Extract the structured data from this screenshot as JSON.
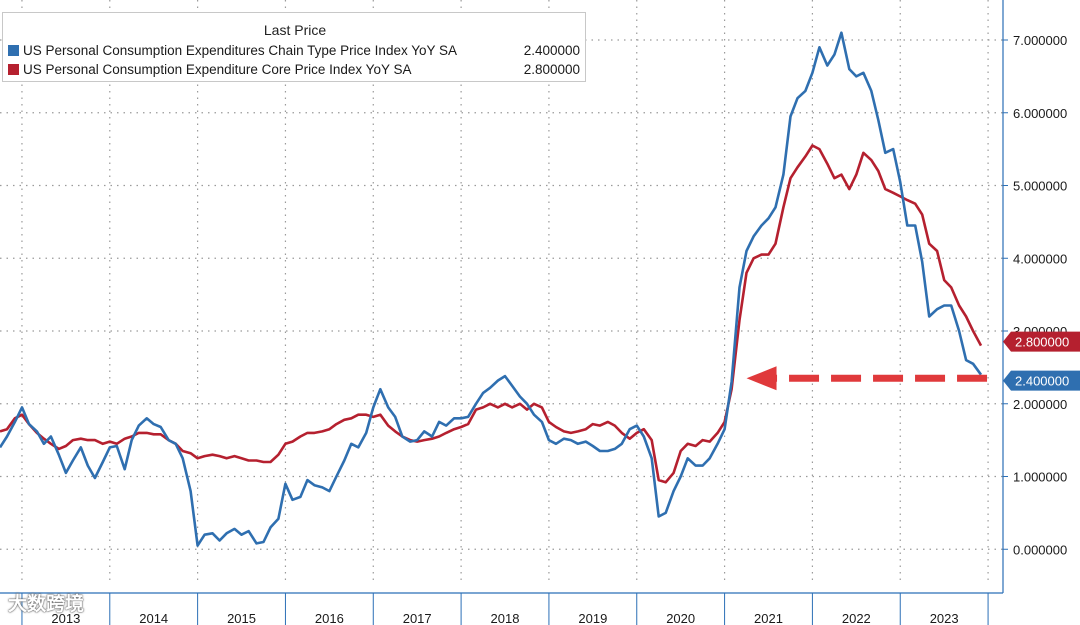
{
  "chart_data": {
    "type": "line",
    "legend": {
      "title": "Last Price",
      "placement": "top-left"
    },
    "series": [
      {
        "name": "US Personal Consumption Expenditures Chain Type Price Index YoY SA",
        "last_value_label": "2.400000",
        "color": "#2f6fb0",
        "points": [
          [
            2012.75,
            1.4
          ],
          [
            2012.83,
            1.55
          ],
          [
            2012.92,
            1.75
          ],
          [
            2013.0,
            1.95
          ],
          [
            2013.08,
            1.72
          ],
          [
            2013.17,
            1.62
          ],
          [
            2013.25,
            1.45
          ],
          [
            2013.33,
            1.55
          ],
          [
            2013.42,
            1.3
          ],
          [
            2013.5,
            1.05
          ],
          [
            2013.58,
            1.22
          ],
          [
            2013.67,
            1.4
          ],
          [
            2013.75,
            1.15
          ],
          [
            2013.83,
            0.98
          ],
          [
            2013.92,
            1.2
          ],
          [
            2014.0,
            1.4
          ],
          [
            2014.08,
            1.42
          ],
          [
            2014.17,
            1.1
          ],
          [
            2014.25,
            1.5
          ],
          [
            2014.33,
            1.7
          ],
          [
            2014.42,
            1.8
          ],
          [
            2014.5,
            1.72
          ],
          [
            2014.58,
            1.68
          ],
          [
            2014.67,
            1.5
          ],
          [
            2014.75,
            1.45
          ],
          [
            2014.83,
            1.25
          ],
          [
            2014.92,
            0.8
          ],
          [
            2015.0,
            0.05
          ],
          [
            2015.08,
            0.2
          ],
          [
            2015.17,
            0.22
          ],
          [
            2015.25,
            0.12
          ],
          [
            2015.33,
            0.22
          ],
          [
            2015.42,
            0.28
          ],
          [
            2015.5,
            0.2
          ],
          [
            2015.58,
            0.25
          ],
          [
            2015.67,
            0.08
          ],
          [
            2015.75,
            0.1
          ],
          [
            2015.83,
            0.3
          ],
          [
            2015.92,
            0.42
          ],
          [
            2016.0,
            0.9
          ],
          [
            2016.08,
            0.68
          ],
          [
            2016.17,
            0.72
          ],
          [
            2016.25,
            0.95
          ],
          [
            2016.33,
            0.88
          ],
          [
            2016.42,
            0.85
          ],
          [
            2016.5,
            0.8
          ],
          [
            2016.58,
            1.0
          ],
          [
            2016.67,
            1.22
          ],
          [
            2016.75,
            1.45
          ],
          [
            2016.83,
            1.4
          ],
          [
            2016.92,
            1.6
          ],
          [
            2017.0,
            1.95
          ],
          [
            2017.08,
            2.2
          ],
          [
            2017.17,
            1.95
          ],
          [
            2017.25,
            1.82
          ],
          [
            2017.33,
            1.55
          ],
          [
            2017.42,
            1.48
          ],
          [
            2017.5,
            1.5
          ],
          [
            2017.58,
            1.62
          ],
          [
            2017.67,
            1.55
          ],
          [
            2017.75,
            1.75
          ],
          [
            2017.83,
            1.7
          ],
          [
            2017.92,
            1.8
          ],
          [
            2018.0,
            1.8
          ],
          [
            2018.08,
            1.82
          ],
          [
            2018.17,
            2.0
          ],
          [
            2018.25,
            2.15
          ],
          [
            2018.33,
            2.22
          ],
          [
            2018.42,
            2.32
          ],
          [
            2018.5,
            2.38
          ],
          [
            2018.58,
            2.25
          ],
          [
            2018.67,
            2.1
          ],
          [
            2018.75,
            2.0
          ],
          [
            2018.83,
            1.85
          ],
          [
            2018.92,
            1.75
          ],
          [
            2019.0,
            1.5
          ],
          [
            2019.08,
            1.45
          ],
          [
            2019.17,
            1.52
          ],
          [
            2019.25,
            1.5
          ],
          [
            2019.33,
            1.45
          ],
          [
            2019.42,
            1.48
          ],
          [
            2019.5,
            1.42
          ],
          [
            2019.58,
            1.35
          ],
          [
            2019.67,
            1.35
          ],
          [
            2019.75,
            1.38
          ],
          [
            2019.83,
            1.45
          ],
          [
            2019.92,
            1.65
          ],
          [
            2020.0,
            1.7
          ],
          [
            2020.08,
            1.55
          ],
          [
            2020.17,
            1.25
          ],
          [
            2020.25,
            0.45
          ],
          [
            2020.33,
            0.5
          ],
          [
            2020.42,
            0.8
          ],
          [
            2020.5,
            1.0
          ],
          [
            2020.58,
            1.25
          ],
          [
            2020.67,
            1.15
          ],
          [
            2020.75,
            1.15
          ],
          [
            2020.83,
            1.25
          ],
          [
            2020.92,
            1.45
          ],
          [
            2021.0,
            1.65
          ],
          [
            2021.08,
            2.3
          ],
          [
            2021.17,
            3.6
          ],
          [
            2021.25,
            4.1
          ],
          [
            2021.33,
            4.3
          ],
          [
            2021.42,
            4.45
          ],
          [
            2021.5,
            4.55
          ],
          [
            2021.58,
            4.7
          ],
          [
            2021.67,
            5.15
          ],
          [
            2021.75,
            5.95
          ],
          [
            2021.83,
            6.2
          ],
          [
            2021.92,
            6.3
          ],
          [
            2022.0,
            6.55
          ],
          [
            2022.08,
            6.9
          ],
          [
            2022.17,
            6.65
          ],
          [
            2022.25,
            6.8
          ],
          [
            2022.33,
            7.1
          ],
          [
            2022.42,
            6.6
          ],
          [
            2022.5,
            6.5
          ],
          [
            2022.58,
            6.55
          ],
          [
            2022.67,
            6.3
          ],
          [
            2022.75,
            5.9
          ],
          [
            2022.83,
            5.45
          ],
          [
            2022.92,
            5.5
          ],
          [
            2023.0,
            5.05
          ],
          [
            2023.08,
            4.45
          ],
          [
            2023.17,
            4.45
          ],
          [
            2023.25,
            3.95
          ],
          [
            2023.33,
            3.2
          ],
          [
            2023.42,
            3.3
          ],
          [
            2023.5,
            3.35
          ],
          [
            2023.58,
            3.35
          ],
          [
            2023.67,
            3.0
          ],
          [
            2023.75,
            2.6
          ],
          [
            2023.83,
            2.55
          ],
          [
            2023.92,
            2.4
          ]
        ]
      },
      {
        "name": "US Personal Consumption Expenditure Core Price Index YoY SA",
        "last_value_label": "2.800000",
        "color": "#b5202f",
        "points": [
          [
            2012.75,
            1.62
          ],
          [
            2012.83,
            1.65
          ],
          [
            2012.92,
            1.8
          ],
          [
            2013.0,
            1.85
          ],
          [
            2013.08,
            1.72
          ],
          [
            2013.17,
            1.6
          ],
          [
            2013.25,
            1.52
          ],
          [
            2013.33,
            1.45
          ],
          [
            2013.42,
            1.38
          ],
          [
            2013.5,
            1.42
          ],
          [
            2013.58,
            1.5
          ],
          [
            2013.67,
            1.52
          ],
          [
            2013.75,
            1.5
          ],
          [
            2013.83,
            1.5
          ],
          [
            2013.92,
            1.45
          ],
          [
            2014.0,
            1.48
          ],
          [
            2014.08,
            1.45
          ],
          [
            2014.17,
            1.52
          ],
          [
            2014.25,
            1.55
          ],
          [
            2014.33,
            1.6
          ],
          [
            2014.42,
            1.6
          ],
          [
            2014.5,
            1.58
          ],
          [
            2014.58,
            1.58
          ],
          [
            2014.67,
            1.5
          ],
          [
            2014.75,
            1.45
          ],
          [
            2014.83,
            1.35
          ],
          [
            2014.92,
            1.32
          ],
          [
            2015.0,
            1.25
          ],
          [
            2015.08,
            1.28
          ],
          [
            2015.17,
            1.3
          ],
          [
            2015.25,
            1.28
          ],
          [
            2015.33,
            1.25
          ],
          [
            2015.42,
            1.28
          ],
          [
            2015.5,
            1.25
          ],
          [
            2015.58,
            1.22
          ],
          [
            2015.67,
            1.22
          ],
          [
            2015.75,
            1.2
          ],
          [
            2015.83,
            1.2
          ],
          [
            2015.92,
            1.3
          ],
          [
            2016.0,
            1.45
          ],
          [
            2016.08,
            1.48
          ],
          [
            2016.17,
            1.55
          ],
          [
            2016.25,
            1.6
          ],
          [
            2016.33,
            1.6
          ],
          [
            2016.42,
            1.62
          ],
          [
            2016.5,
            1.65
          ],
          [
            2016.58,
            1.72
          ],
          [
            2016.67,
            1.78
          ],
          [
            2016.75,
            1.8
          ],
          [
            2016.83,
            1.85
          ],
          [
            2016.92,
            1.85
          ],
          [
            2017.0,
            1.82
          ],
          [
            2017.08,
            1.85
          ],
          [
            2017.17,
            1.7
          ],
          [
            2017.25,
            1.62
          ],
          [
            2017.33,
            1.55
          ],
          [
            2017.42,
            1.5
          ],
          [
            2017.5,
            1.48
          ],
          [
            2017.58,
            1.5
          ],
          [
            2017.67,
            1.52
          ],
          [
            2017.75,
            1.55
          ],
          [
            2017.83,
            1.6
          ],
          [
            2017.92,
            1.65
          ],
          [
            2018.0,
            1.68
          ],
          [
            2018.08,
            1.72
          ],
          [
            2018.17,
            1.92
          ],
          [
            2018.25,
            1.95
          ],
          [
            2018.33,
            2.0
          ],
          [
            2018.42,
            1.95
          ],
          [
            2018.5,
            2.0
          ],
          [
            2018.58,
            1.95
          ],
          [
            2018.67,
            2.0
          ],
          [
            2018.75,
            1.92
          ],
          [
            2018.83,
            2.0
          ],
          [
            2018.92,
            1.95
          ],
          [
            2019.0,
            1.75
          ],
          [
            2019.08,
            1.68
          ],
          [
            2019.17,
            1.62
          ],
          [
            2019.25,
            1.6
          ],
          [
            2019.33,
            1.62
          ],
          [
            2019.42,
            1.65
          ],
          [
            2019.5,
            1.72
          ],
          [
            2019.58,
            1.7
          ],
          [
            2019.67,
            1.75
          ],
          [
            2019.75,
            1.7
          ],
          [
            2019.83,
            1.6
          ],
          [
            2019.92,
            1.52
          ],
          [
            2020.0,
            1.6
          ],
          [
            2020.08,
            1.65
          ],
          [
            2020.17,
            1.5
          ],
          [
            2020.25,
            0.95
          ],
          [
            2020.33,
            0.92
          ],
          [
            2020.42,
            1.05
          ],
          [
            2020.5,
            1.35
          ],
          [
            2020.58,
            1.45
          ],
          [
            2020.67,
            1.42
          ],
          [
            2020.75,
            1.5
          ],
          [
            2020.83,
            1.48
          ],
          [
            2020.92,
            1.6
          ],
          [
            2021.0,
            1.75
          ],
          [
            2021.08,
            2.2
          ],
          [
            2021.17,
            3.15
          ],
          [
            2021.25,
            3.8
          ],
          [
            2021.33,
            4.0
          ],
          [
            2021.42,
            4.05
          ],
          [
            2021.5,
            4.05
          ],
          [
            2021.58,
            4.2
          ],
          [
            2021.67,
            4.7
          ],
          [
            2021.75,
            5.1
          ],
          [
            2021.83,
            5.25
          ],
          [
            2021.92,
            5.4
          ],
          [
            2022.0,
            5.55
          ],
          [
            2022.08,
            5.5
          ],
          [
            2022.17,
            5.3
          ],
          [
            2022.25,
            5.1
          ],
          [
            2022.33,
            5.15
          ],
          [
            2022.42,
            4.95
          ],
          [
            2022.5,
            5.15
          ],
          [
            2022.58,
            5.45
          ],
          [
            2022.67,
            5.35
          ],
          [
            2022.75,
            5.2
          ],
          [
            2022.83,
            4.95
          ],
          [
            2022.92,
            4.9
          ],
          [
            2023.0,
            4.85
          ],
          [
            2023.08,
            4.8
          ],
          [
            2023.17,
            4.75
          ],
          [
            2023.25,
            4.6
          ],
          [
            2023.33,
            4.2
          ],
          [
            2023.42,
            4.1
          ],
          [
            2023.5,
            3.7
          ],
          [
            2023.58,
            3.6
          ],
          [
            2023.67,
            3.35
          ],
          [
            2023.75,
            3.2
          ],
          [
            2023.83,
            3.0
          ],
          [
            2023.92,
            2.8
          ]
        ]
      }
    ],
    "x_tick_labels": [
      "2013",
      "2014",
      "2015",
      "2016",
      "2017",
      "2018",
      "2019",
      "2020",
      "2021",
      "2022",
      "2023"
    ],
    "y_tick_labels": [
      "0.000000",
      "1.000000",
      "2.000000",
      "3.000000",
      "4.000000",
      "5.000000",
      "6.000000",
      "7.000000"
    ],
    "xlim": [
      2012.75,
      2024.17
    ],
    "ylim": [
      -0.45,
      7.55
    ],
    "grid": true,
    "annotation": {
      "type": "dashed-arrow",
      "direction": "left",
      "color": "#e0393b",
      "from_x": 2023.92,
      "to_x": 2021.25,
      "y": 2.35
    },
    "watermark": "大数跨境"
  },
  "colors": {
    "axis": "#2b6fb6",
    "grid": "#9a9a9a"
  }
}
